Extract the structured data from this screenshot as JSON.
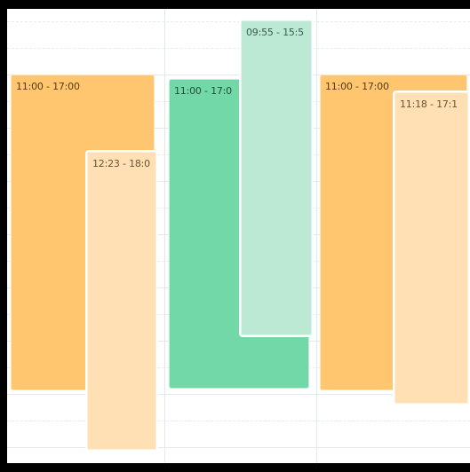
{
  "calendar": {
    "events": [
      {
        "label": "11:00 - 17:00",
        "color": "#ffc56f",
        "text_color": "#5a3b0e"
      },
      {
        "label": "12:23 - 18:0",
        "color": "#ffdfb4",
        "text_color": "#6b5331"
      },
      {
        "label": "11:00 - 17:0",
        "color": "#73d8a8",
        "text_color": "#1f4f38"
      },
      {
        "label": "09:55 - 15:5",
        "color": "#bce9d4",
        "text_color": "#3a5d4f"
      },
      {
        "label": "11:00 - 17:00",
        "color": "#ffc56f",
        "text_color": "#5a3b0e"
      },
      {
        "label": "11:18 - 17:1",
        "color": "#ffdfb4",
        "text_color": "#6b5331"
      }
    ]
  }
}
